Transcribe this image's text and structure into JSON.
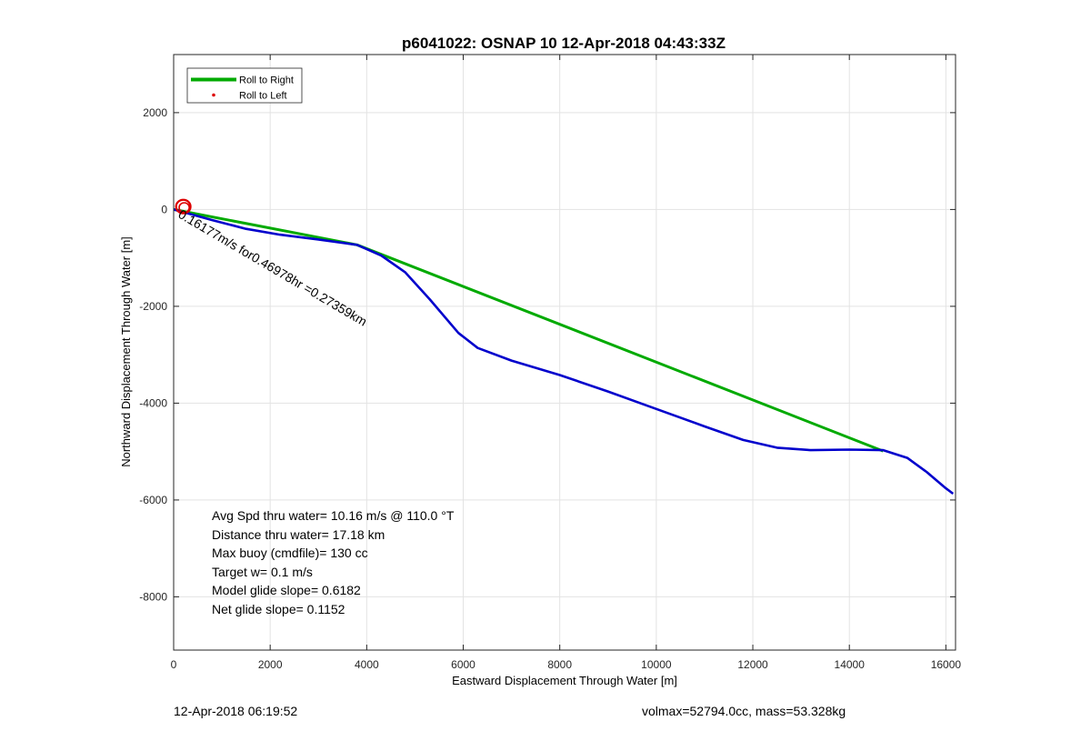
{
  "chart_data": {
    "type": "line",
    "title": "p6041022: OSNAP 10 12-Apr-2018 04:43:33Z",
    "xlabel": "Eastward Displacement Through Water [m]",
    "ylabel": "Northward Displacement Through Water [m]",
    "xlim": [
      0,
      16200
    ],
    "ylim": [
      -9100,
      3200
    ],
    "xticks": [
      0,
      2000,
      4000,
      6000,
      8000,
      10000,
      12000,
      14000,
      16000
    ],
    "yticks": [
      -8000,
      -6000,
      -4000,
      -2000,
      0,
      2000
    ],
    "grid": true,
    "legend_position": "top-left",
    "series": [
      {
        "name": "Roll to Right",
        "style": "line",
        "color": "#00aa00",
        "x": [
          0,
          3800,
          14700
        ],
        "y": [
          0,
          -730,
          -4990
        ]
      },
      {
        "name": "Roll to Left",
        "style": "marker",
        "color": "#dd0000",
        "x": [],
        "y": []
      },
      {
        "name": "",
        "style": "line",
        "color": "#0000cc",
        "x": [
          0,
          800,
          1500,
          2200,
          3000,
          3800,
          4300,
          4800,
          5300,
          5900,
          6300,
          7000,
          8000,
          9000,
          10000,
          11000,
          11800,
          12500,
          13200,
          14000,
          14700,
          15200,
          15600,
          16000,
          16150
        ],
        "y": [
          0,
          -220,
          -400,
          -520,
          -620,
          -730,
          -950,
          -1300,
          -1850,
          -2550,
          -2860,
          -3120,
          -3420,
          -3760,
          -4120,
          -4480,
          -4760,
          -4920,
          -4970,
          -4960,
          -4970,
          -5130,
          -5420,
          -5760,
          -5870
        ]
      },
      {
        "name": "",
        "style": "loop",
        "color": "#dd0000",
        "cx": 200,
        "cy": 60,
        "rx": 150,
        "ry": 140
      }
    ],
    "annotations": [
      {
        "text": "0.16177m/s for0.46978hr =0.27359km",
        "x": 0,
        "y": 0,
        "angle_deg": 30.5
      }
    ],
    "stats": [
      "Avg Spd thru water= 10.16 m/s @ 110.0 °T",
      "Distance thru water= 17.18 km",
      "Max buoy (cmdfile)= 130 cc",
      "Target w= 0.1 m/s",
      "Model glide slope= 0.6182",
      "Net glide slope= 0.1152"
    ]
  },
  "footer": {
    "left": "12-Apr-2018 06:19:52",
    "right": "volmax=52794.0cc, mass=53.328kg"
  }
}
